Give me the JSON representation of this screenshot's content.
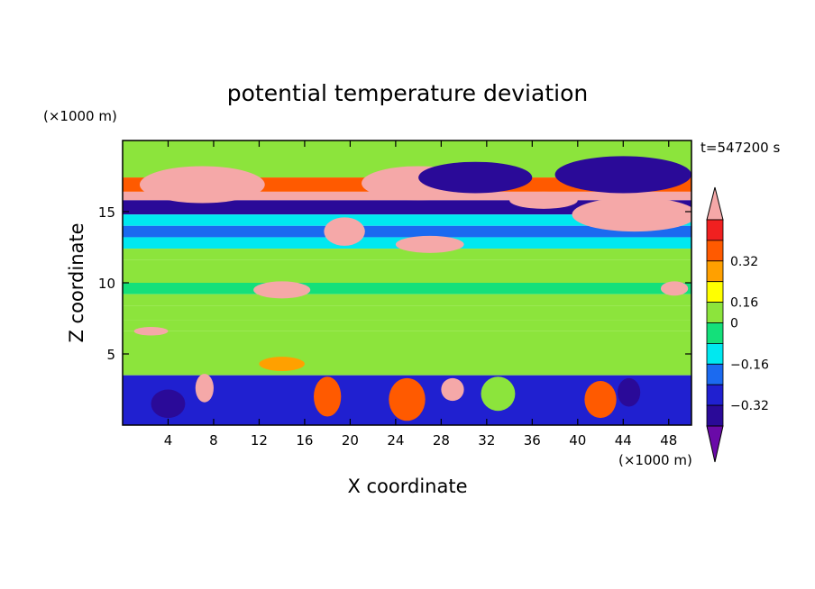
{
  "chart_data": {
    "type": "heatmap",
    "title": "potential temperature deviation",
    "xlabel": "X coordinate",
    "ylabel": "Z coordinate",
    "x_unit": "(×1000 m)",
    "y_unit": "(×1000 m)",
    "time_label": "t=547200 s",
    "xlim": [
      0,
      50
    ],
    "ylim": [
      0,
      20
    ],
    "x_ticks": [
      4,
      8,
      12,
      16,
      20,
      24,
      28,
      32,
      36,
      40,
      44,
      48
    ],
    "y_ticks": [
      5,
      10,
      15
    ],
    "colorbar": {
      "levels": [
        -0.4,
        -0.32,
        -0.24,
        -0.16,
        -0.08,
        0,
        0.08,
        0.16,
        0.24,
        0.32,
        0.4
      ],
      "labeled": [
        "0.32",
        "0.16",
        "0",
        "−0.16",
        "−0.32"
      ],
      "colors": [
        "#6a0aa8",
        "#2a0a98",
        "#2020d0",
        "#1b6af0",
        "#00e8f0",
        "#14e07a",
        "#8ce43c",
        "#ffff00",
        "#ffa000",
        "#ff5a00",
        "#f02020",
        "#f5a8a8"
      ],
      "extend": "both"
    },
    "field_bands": [
      {
        "z": [
          17.4,
          20.0
        ],
        "level": 0.05
      },
      {
        "z": [
          16.4,
          17.4
        ],
        "level": 0.3
      },
      {
        "z": [
          15.8,
          16.4
        ],
        "level": 0.42
      },
      {
        "z": [
          14.8,
          15.8
        ],
        "level": -0.4
      },
      {
        "z": [
          14.0,
          14.8
        ],
        "level": -0.1
      },
      {
        "z": [
          13.2,
          14.0
        ],
        "level": -0.2
      },
      {
        "z": [
          12.4,
          13.2
        ],
        "level": -0.1
      },
      {
        "z": [
          11.6,
          12.4
        ],
        "level": 0.0
      },
      {
        "z": [
          10.0,
          11.6
        ],
        "level": 0.05
      },
      {
        "z": [
          9.2,
          10.0
        ],
        "level": -0.05
      },
      {
        "z": [
          8.4,
          9.2
        ],
        "level": 0.0
      },
      {
        "z": [
          7.4,
          8.4
        ],
        "level": 0.05
      },
      {
        "z": [
          6.6,
          7.4
        ],
        "level": 0.0
      },
      {
        "z": [
          5.0,
          6.6
        ],
        "level": 0.06
      },
      {
        "z": [
          3.5,
          5.0
        ],
        "level": 0.05
      },
      {
        "z": [
          0.0,
          3.5
        ],
        "level": -0.3
      }
    ],
    "features": [
      {
        "x": 7,
        "z": 16.9,
        "rx": 5.5,
        "rz": 1.3,
        "level": 0.42
      },
      {
        "x": 26,
        "z": 17.0,
        "rx": 5.0,
        "rz": 1.2,
        "level": 0.42
      },
      {
        "x": 31,
        "z": 17.4,
        "rx": 5.0,
        "rz": 1.1,
        "level": -0.4
      },
      {
        "x": 44,
        "z": 17.6,
        "rx": 6.0,
        "rz": 1.3,
        "level": -0.4
      },
      {
        "x": 45,
        "z": 14.8,
        "rx": 5.5,
        "rz": 1.2,
        "level": 0.42
      },
      {
        "x": 37,
        "z": 15.8,
        "rx": 3.0,
        "rz": 0.6,
        "level": 0.42
      },
      {
        "x": 19.5,
        "z": 13.6,
        "rx": 1.8,
        "rz": 1.0,
        "level": 0.42
      },
      {
        "x": 27,
        "z": 12.7,
        "rx": 3.0,
        "rz": 0.6,
        "level": 0.42
      },
      {
        "x": 14,
        "z": 9.5,
        "rx": 2.5,
        "rz": 0.6,
        "level": 0.42
      },
      {
        "x": 2.5,
        "z": 6.6,
        "rx": 1.5,
        "rz": 0.3,
        "level": 0.42
      },
      {
        "x": 48.5,
        "z": 9.6,
        "rx": 1.2,
        "rz": 0.5,
        "level": 0.42
      },
      {
        "x": 14,
        "z": 4.3,
        "rx": 2.0,
        "rz": 0.5,
        "level": 0.16
      },
      {
        "x": 25,
        "z": 1.8,
        "rx": 1.6,
        "rz": 1.5,
        "level": 0.3
      },
      {
        "x": 18,
        "z": 2.0,
        "rx": 1.2,
        "rz": 1.4,
        "level": 0.3
      },
      {
        "x": 7.2,
        "z": 2.6,
        "rx": 0.8,
        "rz": 1.0,
        "level": 0.42
      },
      {
        "x": 42,
        "z": 1.8,
        "rx": 1.4,
        "rz": 1.3,
        "level": 0.3
      },
      {
        "x": 33,
        "z": 2.2,
        "rx": 1.5,
        "rz": 1.2,
        "level": 0.0
      },
      {
        "x": 44.5,
        "z": 2.3,
        "rx": 1.0,
        "rz": 1.0,
        "level": -0.4
      },
      {
        "x": 4,
        "z": 1.5,
        "rx": 1.5,
        "rz": 1.0,
        "level": -0.4
      },
      {
        "x": 29,
        "z": 2.5,
        "rx": 1.0,
        "rz": 0.8,
        "level": 0.42
      }
    ]
  }
}
